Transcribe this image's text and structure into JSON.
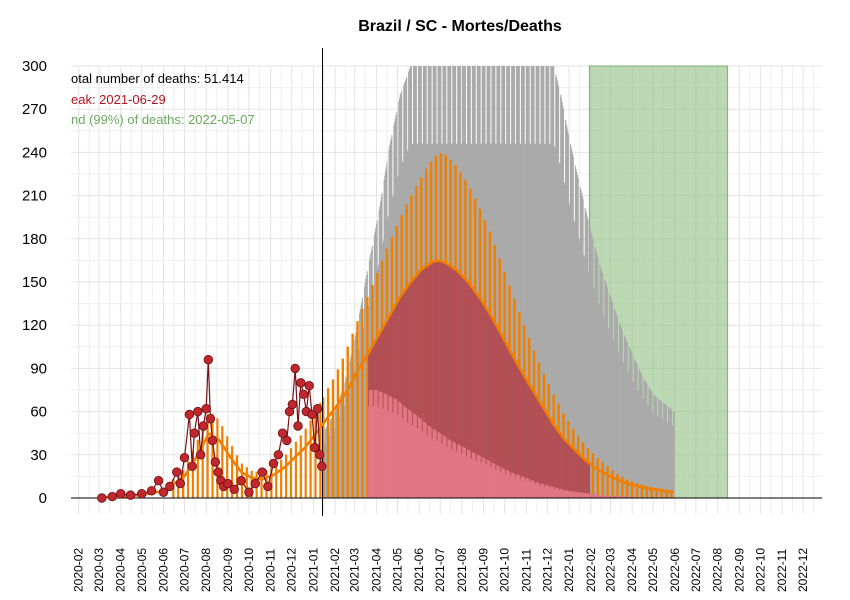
{
  "chart_data": {
    "type": "bar",
    "title": "Brazil / SC - Mortes/Deaths",
    "xlabel": "",
    "ylabel": "",
    "ylim": [
      0,
      300
    ],
    "xlim": [
      "2020-01-21",
      "2022-12-28"
    ],
    "yticks": [
      0,
      30,
      60,
      90,
      120,
      150,
      180,
      210,
      240,
      270,
      300
    ],
    "xticks": [
      "2020-02",
      "2020-03",
      "2020-04",
      "2020-05",
      "2020-06",
      "2020-07",
      "2020-08",
      "2020-09",
      "2020-10",
      "2020-11",
      "2020-12",
      "2021-01",
      "2021-02",
      "2021-03",
      "2021-04",
      "2021-05",
      "2021-06",
      "2021-07",
      "2021-08",
      "2021-09",
      "2021-10",
      "2021-11",
      "2021-12",
      "2022-01",
      "2022-02",
      "2022-03",
      "2022-04",
      "2022-05",
      "2022-06",
      "2022-07",
      "2022-08",
      "2022-09",
      "2022-10",
      "2022-11",
      "2022-12"
    ],
    "grid": true,
    "colors": {
      "observed_points": "#c1272d",
      "observed_line": "#7a1015",
      "fit_line": "#f07f00",
      "prediction_range": "#aaaaaa",
      "prediction_mean": "#b04a55",
      "prediction_lower": "#e07782",
      "end_band": "#8fbf80"
    },
    "annotations": {
      "total": "otal number of deaths: 51.414",
      "peak": "eak: 2021-06-29",
      "end": "nd (99%) of deaths: 2022-05-07"
    },
    "annotation_colors": {
      "total": "#000000",
      "peak": "#b5141e",
      "end": "#6aab5e"
    },
    "current_date": "2021-01-14",
    "peak_date": "2021-06-29",
    "peak_mean": 165,
    "peak_upper": 240,
    "prediction_start": "2021-03-20",
    "prediction_end": "2022-05-31",
    "end_band": {
      "start": "2022-01-30",
      "end": "2022-08-15"
    },
    "observed": {
      "dates": [
        "2020-03-05",
        "2020-03-20",
        "2020-04-01",
        "2020-04-15",
        "2020-05-01",
        "2020-05-15",
        "2020-05-25",
        "2020-06-01",
        "2020-06-10",
        "2020-06-20",
        "2020-06-25",
        "2020-07-01",
        "2020-07-08",
        "2020-07-12",
        "2020-07-15",
        "2020-07-20",
        "2020-07-24",
        "2020-07-28",
        "2020-08-01",
        "2020-08-04",
        "2020-08-07",
        "2020-08-10",
        "2020-08-14",
        "2020-08-18",
        "2020-08-22",
        "2020-08-26",
        "2020-09-01",
        "2020-09-10",
        "2020-09-20",
        "2020-10-01",
        "2020-10-10",
        "2020-10-20",
        "2020-10-28",
        "2020-11-05",
        "2020-11-12",
        "2020-11-18",
        "2020-11-24",
        "2020-11-28",
        "2020-12-02",
        "2020-12-06",
        "2020-12-10",
        "2020-12-14",
        "2020-12-18",
        "2020-12-22",
        "2020-12-26",
        "2020-12-30",
        "2021-01-03",
        "2021-01-07",
        "2021-01-10",
        "2021-01-13"
      ],
      "values": [
        0,
        1,
        3,
        2,
        3,
        5,
        12,
        4,
        8,
        18,
        10,
        28,
        58,
        22,
        45,
        60,
        30,
        50,
        62,
        96,
        55,
        40,
        25,
        18,
        12,
        8,
        10,
        6,
        12,
        4,
        10,
        18,
        8,
        24,
        30,
        45,
        40,
        60,
        65,
        90,
        50,
        80,
        72,
        60,
        78,
        58,
        35,
        62,
        30,
        22
      ]
    },
    "fit": {
      "dates": [
        "2020-03-01",
        "2020-04-01",
        "2020-05-01",
        "2020-06-01",
        "2020-07-01",
        "2020-07-20",
        "2020-08-05",
        "2020-08-20",
        "2020-09-05",
        "2020-09-20",
        "2020-10-05",
        "2020-10-20",
        "2020-11-05",
        "2020-11-20",
        "2020-12-05",
        "2020-12-20",
        "2021-01-05",
        "2021-01-20",
        "2021-02-05",
        "2021-02-20",
        "2021-03-05",
        "2021-03-20",
        "2021-04-05",
        "2021-04-20",
        "2021-05-05",
        "2021-05-20",
        "2021-06-05",
        "2021-06-20",
        "2021-06-29",
        "2021-07-10",
        "2021-07-25",
        "2021-08-10",
        "2021-08-25",
        "2021-09-10",
        "2021-09-25",
        "2021-10-10",
        "2021-10-25",
        "2021-11-10",
        "2021-11-25",
        "2021-12-10",
        "2021-12-25",
        "2022-01-10",
        "2022-01-25",
        "2022-02-10",
        "2022-02-25",
        "2022-03-10",
        "2022-03-25",
        "2022-04-10",
        "2022-04-25",
        "2022-05-10",
        "2022-05-31"
      ],
      "values": [
        0.3,
        1,
        2,
        5,
        15,
        30,
        45,
        40,
        28,
        18,
        14,
        13,
        16,
        21,
        28,
        35,
        45,
        55,
        65,
        76,
        88,
        100,
        114,
        127,
        140,
        150,
        159,
        164,
        165,
        163,
        158,
        150,
        140,
        128,
        115,
        101,
        88,
        75,
        63,
        51,
        41,
        33,
        26,
        20,
        16,
        13,
        10,
        8,
        6.5,
        5.5,
        4
      ]
    },
    "fit_upper": {
      "dates": [
        "2021-01-15",
        "2021-02-01",
        "2021-02-15",
        "2021-03-01",
        "2021-03-15",
        "2021-04-01",
        "2021-04-15",
        "2021-05-01",
        "2021-05-15",
        "2021-06-01",
        "2021-06-15",
        "2021-06-29",
        "2021-07-10",
        "2021-07-25",
        "2021-08-10",
        "2021-08-25",
        "2021-09-10",
        "2021-09-25",
        "2021-10-10",
        "2021-10-25",
        "2021-11-10",
        "2021-11-25",
        "2021-12-10",
        "2021-12-25",
        "2022-01-10",
        "2022-01-25",
        "2022-02-10",
        "2022-02-25",
        "2022-03-10",
        "2022-03-25",
        "2022-04-10",
        "2022-04-25",
        "2022-05-10",
        "2022-05-31"
      ],
      "values": [
        70,
        85,
        100,
        118,
        135,
        155,
        172,
        190,
        205,
        220,
        232,
        240,
        238,
        230,
        218,
        203,
        185,
        165,
        145,
        125,
        105,
        87,
        72,
        58,
        46,
        36,
        28,
        22,
        17,
        13,
        10,
        8,
        6.5,
        5
      ]
    },
    "pred_upper": {
      "dates": [
        "2021-01-15",
        "2021-02-01",
        "2021-02-15",
        "2021-03-01",
        "2021-03-20",
        "2021-04-05",
        "2021-04-20",
        "2021-05-05",
        "2021-05-20",
        "2021-06-05",
        "2021-07-01",
        "2021-12-10",
        "2021-12-20",
        "2022-01-01",
        "2022-01-15",
        "2022-02-01",
        "2022-02-15",
        "2022-03-01",
        "2022-03-15",
        "2022-04-01",
        "2022-04-15",
        "2022-05-01",
        "2022-05-31"
      ],
      "values": [
        45,
        60,
        80,
        110,
        160,
        200,
        245,
        280,
        300,
        300,
        300,
        300,
        280,
        250,
        220,
        185,
        160,
        140,
        120,
        100,
        85,
        72,
        60
      ]
    },
    "pred_lower": {
      "dates": [
        "2021-03-20",
        "2021-04-01",
        "2021-04-15",
        "2021-05-01",
        "2021-05-15",
        "2021-06-01",
        "2021-06-15",
        "2021-07-01",
        "2021-07-15",
        "2021-08-01",
        "2021-08-15",
        "2021-09-01",
        "2021-09-15",
        "2021-10-01",
        "2021-10-15",
        "2021-11-01",
        "2021-11-15",
        "2021-12-01",
        "2021-12-15",
        "2022-01-01",
        "2022-01-15",
        "2022-02-01",
        "2022-02-15",
        "2022-03-01",
        "2022-03-20",
        "2022-04-01"
      ],
      "values": [
        75,
        75,
        72,
        68,
        62,
        56,
        50,
        45,
        40,
        36,
        32,
        28,
        24,
        20,
        17,
        14,
        11,
        9,
        7,
        5,
        4,
        3,
        2,
        1.5,
        1,
        0.5
      ]
    }
  }
}
